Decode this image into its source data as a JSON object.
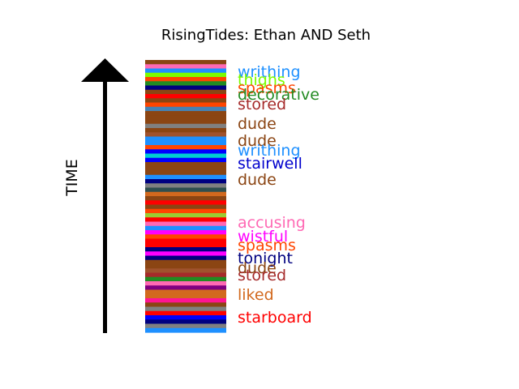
{
  "chart_data": {
    "type": "bar",
    "title": "RisingTides: Ethan AND Seth",
    "ylabel": "TIME",
    "stripe_colors": [
      "#8B4513",
      "#FF69B4",
      "#1E90FF",
      "#7CFC00",
      "#FF4500",
      "#228B22",
      "#000080",
      "#8B4513",
      "#FF0000",
      "#8B4513",
      "#FF4500",
      "#4682B4",
      "#8B4513",
      "#8B4513",
      "#8B4513",
      "#808080",
      "#8B4513",
      "#A0522D",
      "#1E90FF",
      "#1E90FF",
      "#FF4500",
      "#0000FF",
      "#00CED1",
      "#0000FF",
      "#8B4513",
      "#8B4513",
      "#8B4513",
      "#1E90FF",
      "#000080",
      "#808080",
      "#2F4F4F",
      "#D2691E",
      "#8B4513",
      "#FF0000",
      "#8B4513",
      "#FF4500",
      "#9ACD32",
      "#FF0000",
      "#FF69B4",
      "#1E90FF",
      "#FF00FF",
      "#FF4500",
      "#FF0000",
      "#FF0000",
      "#000080",
      "#FF00FF",
      "#000080",
      "#8B4513",
      "#8B4513",
      "#A0522D",
      "#A52A2A",
      "#228B22",
      "#FF69B4",
      "#800080",
      "#D2691E",
      "#D2691E",
      "#FF1493",
      "#8B4513",
      "#808080",
      "#FF0000",
      "#0000FF",
      "#000080",
      "#808080",
      "#1E90FF"
    ],
    "words": [
      {
        "text": "writhing",
        "color": "#1E90FF"
      },
      {
        "text": "thighs",
        "color": "#7CFC00"
      },
      {
        "text": "spasms",
        "color": "#FF4500"
      },
      {
        "text": "decorative",
        "color": "#228B22"
      },
      {
        "text": "stored",
        "color": "#A52A2A"
      },
      {
        "text": "dude",
        "color": "#8B4513"
      },
      {
        "text": "dude",
        "color": "#8B4513"
      },
      {
        "text": "writhing",
        "color": "#1E90FF"
      },
      {
        "text": "stairwell",
        "color": "#0000CD"
      },
      {
        "text": "dude",
        "color": "#8B4513"
      },
      {
        "text": "accusing",
        "color": "#FF69B4"
      },
      {
        "text": "wistful",
        "color": "#FF00FF"
      },
      {
        "text": "spasms",
        "color": "#FF4500"
      },
      {
        "text": "tonight",
        "color": "#000080"
      },
      {
        "text": "dude",
        "color": "#8B4513"
      },
      {
        "text": "stored",
        "color": "#A52A2A"
      },
      {
        "text": "liked",
        "color": "#D2691E"
      },
      {
        "text": "starboard",
        "color": "#FF0000"
      }
    ]
  }
}
